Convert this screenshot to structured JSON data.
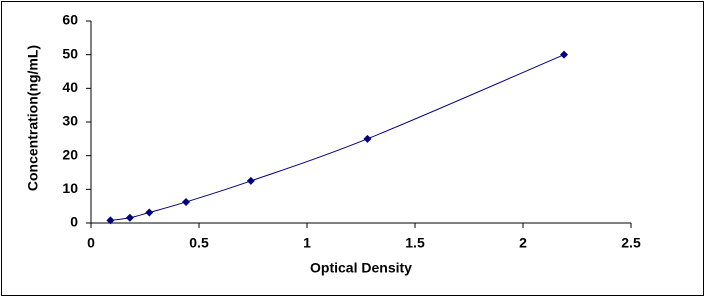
{
  "chart_data": {
    "type": "scatter",
    "x_label": "Optical Density",
    "y_label": "Concentration(ng/mL)",
    "x": [
      0.09,
      0.18,
      0.27,
      0.44,
      0.74,
      1.28,
      2.19
    ],
    "values": [
      0.78,
      1.56,
      3.12,
      6.25,
      12.5,
      25,
      50
    ],
    "color": "#00007f",
    "xlim": [
      0,
      2.5
    ],
    "xticks": [
      0,
      0.5,
      1,
      1.5,
      2,
      2.5
    ],
    "ylim": [
      0,
      60
    ],
    "yticks": [
      0,
      10,
      20,
      30,
      40,
      50,
      60
    ],
    "grid": false
  }
}
